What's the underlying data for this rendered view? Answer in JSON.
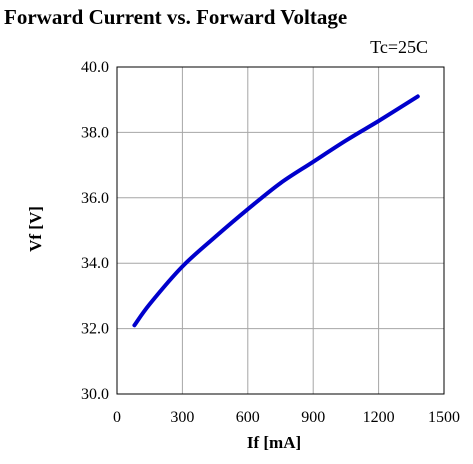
{
  "chart_data": {
    "type": "line",
    "title": "Forward Current vs. Forward Voltage",
    "annotation": "Tc=25C",
    "xlabel": "If [mA]",
    "ylabel": "Vf [V]",
    "xlim": [
      0,
      1500
    ],
    "ylim": [
      30.0,
      40.0
    ],
    "x_ticks": [
      0,
      300,
      600,
      900,
      1200,
      1500
    ],
    "y_ticks": [
      30.0,
      32.0,
      34.0,
      36.0,
      38.0,
      40.0
    ],
    "x_tick_labels": [
      "0",
      "300",
      "600",
      "900",
      "1200",
      "1500"
    ],
    "y_tick_labels": [
      "30.0",
      "32.0",
      "34.0",
      "36.0",
      "38.0",
      "40.0"
    ],
    "grid": true,
    "series": [
      {
        "color": "#0000cc",
        "x": [
          80,
          150,
          300,
          450,
          600,
          750,
          900,
          1050,
          1200,
          1380
        ],
        "y": [
          32.1,
          32.75,
          33.9,
          34.8,
          35.65,
          36.45,
          37.1,
          37.75,
          38.35,
          39.1
        ]
      }
    ]
  }
}
